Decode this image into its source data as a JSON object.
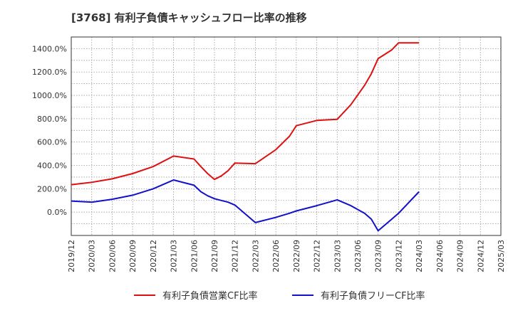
{
  "chart_data": {
    "type": "line",
    "title": "[3768]  有利子負債キャッシュフロー比率の推移",
    "xlabel": "",
    "ylabel": "",
    "ylim": [
      -200,
      1500
    ],
    "y_ticks": [
      0,
      200,
      400,
      600,
      800,
      1000,
      1200,
      1400
    ],
    "y_tick_labels": [
      "0.0%",
      "200.0%",
      "400.0%",
      "600.0%",
      "800.0%",
      "1000.0%",
      "1200.0%",
      "1400.0%"
    ],
    "x_tick_labels": [
      "2019/12",
      "2020/03",
      "2020/06",
      "2020/09",
      "2020/12",
      "2021/03",
      "2021/06",
      "2021/09",
      "2021/12",
      "2022/03",
      "2022/06",
      "2022/09",
      "2022/12",
      "2023/03",
      "2023/06",
      "2023/09",
      "2023/12",
      "2024/03",
      "2024/06",
      "2024/09",
      "2024/12",
      "2025/03"
    ],
    "grid": true,
    "legend_position": "bottom",
    "series": [
      {
        "name": "有利子負債営業CF比率",
        "color": "#dd1111",
        "points": [
          [
            "2019/12",
            235
          ],
          [
            "2020/03",
            255
          ],
          [
            "2020/06",
            285
          ],
          [
            "2020/09",
            330
          ],
          [
            "2020/12",
            390
          ],
          [
            "2021/03",
            480
          ],
          [
            "2021/06",
            455
          ],
          [
            "2021/07",
            390
          ],
          [
            "2021/08",
            330
          ],
          [
            "2021/09",
            280
          ],
          [
            "2021/10",
            310
          ],
          [
            "2021/11",
            355
          ],
          [
            "2021/12",
            420
          ],
          [
            "2022/03",
            415
          ],
          [
            "2022/06",
            535
          ],
          [
            "2022/08",
            650
          ],
          [
            "2022/09",
            740
          ],
          [
            "2022/12",
            785
          ],
          [
            "2023/03",
            795
          ],
          [
            "2023/05",
            920
          ],
          [
            "2023/07",
            1085
          ],
          [
            "2023/08",
            1185
          ],
          [
            "2023/09",
            1315
          ],
          [
            "2023/11",
            1390
          ],
          [
            "2023/12",
            1450
          ],
          [
            "2024/03",
            1450
          ]
        ]
      },
      {
        "name": "有利子負債フリーCF比率",
        "color": "#1111cc",
        "points": [
          [
            "2019/12",
            95
          ],
          [
            "2020/03",
            85
          ],
          [
            "2020/06",
            110
          ],
          [
            "2020/09",
            145
          ],
          [
            "2020/12",
            200
          ],
          [
            "2021/03",
            275
          ],
          [
            "2021/06",
            230
          ],
          [
            "2021/07",
            175
          ],
          [
            "2021/08",
            140
          ],
          [
            "2021/09",
            115
          ],
          [
            "2021/10",
            100
          ],
          [
            "2021/11",
            85
          ],
          [
            "2021/12",
            60
          ],
          [
            "2022/03",
            -90
          ],
          [
            "2022/06",
            -45
          ],
          [
            "2022/08",
            -10
          ],
          [
            "2022/09",
            10
          ],
          [
            "2022/12",
            55
          ],
          [
            "2023/03",
            105
          ],
          [
            "2023/05",
            55
          ],
          [
            "2023/07",
            -10
          ],
          [
            "2023/08",
            -60
          ],
          [
            "2023/09",
            -160
          ],
          [
            "2023/11",
            -60
          ],
          [
            "2023/12",
            -10
          ],
          [
            "2024/03",
            175
          ]
        ]
      }
    ]
  }
}
